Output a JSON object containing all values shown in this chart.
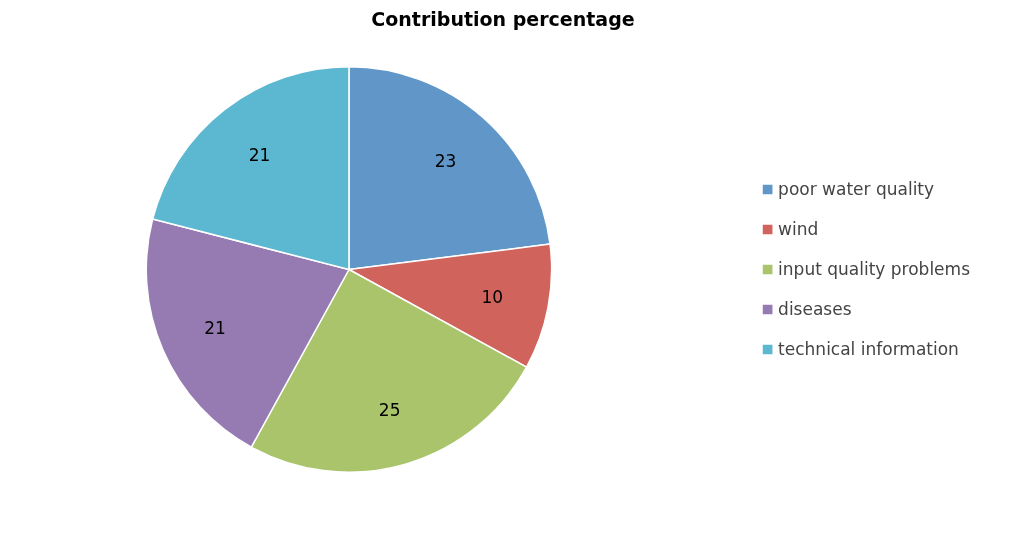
{
  "chart_data": {
    "type": "pie",
    "title": "Contribution percentage",
    "categories": [
      "poor water quality",
      "wind",
      "input quality problems",
      "diseases",
      "technical information"
    ],
    "values": [
      23,
      10,
      25,
      21,
      21
    ],
    "colors": [
      "#6196c9",
      "#d0635b",
      "#a9c46b",
      "#957bb1",
      "#5bb8d0"
    ],
    "data_labels": true,
    "legend": "right"
  }
}
